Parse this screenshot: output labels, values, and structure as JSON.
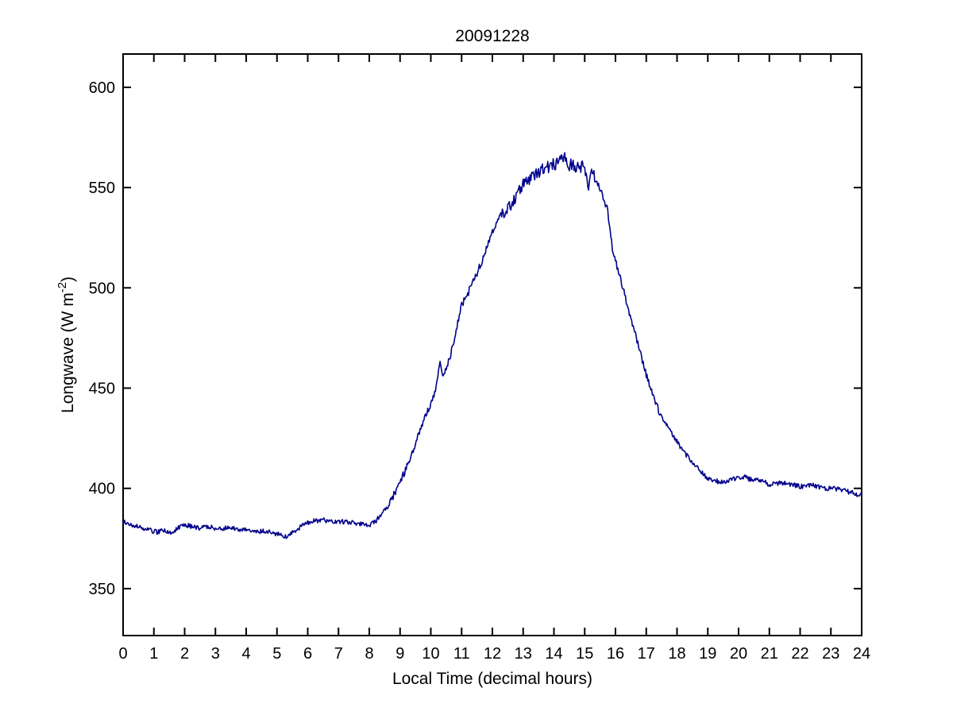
{
  "figure": {
    "background": "#ffffff",
    "axis_color": "#000000",
    "text_color": "#000000"
  },
  "chart_data": {
    "type": "line",
    "title": "20091228",
    "xlabel": "Local Time (decimal hours)",
    "ylabel": "Longwave (W m-2)",
    "ylabel_parts": {
      "prefix": "Longwave (W m",
      "sup": "-2",
      "suffix": ")"
    },
    "xlim": [
      0,
      24
    ],
    "ylim": [
      326.6,
      616.6
    ],
    "xticks": [
      0,
      1,
      2,
      3,
      4,
      5,
      6,
      7,
      8,
      9,
      10,
      11,
      12,
      13,
      14,
      15,
      16,
      17,
      18,
      19,
      20,
      21,
      22,
      23,
      24
    ],
    "yticks": [
      350,
      400,
      450,
      500,
      550,
      600
    ],
    "grid": false,
    "legend": "none",
    "line_color": "#00008B",
    "series": [
      {
        "name": "longwave",
        "t": [
          0,
          0.15,
          0.3,
          0.5,
          0.7,
          0.9,
          1.1,
          1.3,
          1.5,
          1.7,
          1.9,
          2.1,
          2.3,
          2.5,
          2.7,
          2.9,
          3.1,
          3.3,
          3.5,
          3.7,
          3.9,
          4.1,
          4.3,
          4.5,
          4.7,
          4.9,
          5.1,
          5.3,
          5.5,
          5.75,
          6,
          6.25,
          6.5,
          6.75,
          7,
          7.25,
          7.5,
          7.75,
          8,
          8.2,
          8.4,
          8.6,
          8.8,
          9,
          9.2,
          9.4,
          9.6,
          9.8,
          10,
          10.15,
          10.3,
          10.4,
          10.5,
          10.65,
          10.8,
          11,
          11.2,
          11.4,
          11.6,
          11.8,
          12,
          12.2,
          12.4,
          12.6,
          12.8,
          13,
          13.2,
          13.4,
          13.6,
          13.8,
          14,
          14.2,
          14.35,
          14.5,
          14.65,
          14.8,
          14.95,
          15.05,
          15.12,
          15.18,
          15.3,
          15.45,
          15.6,
          15.75,
          15.9,
          16,
          16.2,
          16.4,
          16.6,
          16.8,
          17,
          17.2,
          17.4,
          17.6,
          17.8,
          18,
          18.2,
          18.4,
          18.6,
          18.8,
          19,
          19.2,
          19.4,
          19.6,
          19.8,
          20,
          20.2,
          20.4,
          20.6,
          20.8,
          21,
          21.2,
          21.4,
          21.6,
          21.8,
          22,
          22.2,
          22.4,
          22.6,
          22.8,
          23,
          23.2,
          23.4,
          23.6,
          23.8,
          24
        ],
        "v": [
          383.5,
          382.5,
          381.5,
          381,
          380,
          379,
          378.2,
          379,
          377.5,
          379.5,
          381,
          381.5,
          380.5,
          380,
          380.8,
          380.5,
          380,
          380.3,
          380,
          379.6,
          379.8,
          379.2,
          378.8,
          378.6,
          378.3,
          377.8,
          376.8,
          376.3,
          378,
          380.5,
          382.8,
          383.8,
          384.2,
          383.8,
          383.5,
          383.2,
          382.8,
          382,
          381.6,
          383.5,
          387,
          391.5,
          397,
          403,
          410,
          418,
          427,
          435.5,
          442.5,
          448,
          464,
          456,
          460,
          467,
          477,
          491,
          497,
          504,
          511,
          519,
          527.5,
          535,
          538,
          541.5,
          546,
          551.5,
          554.5,
          556.5,
          558.5,
          560,
          561.5,
          563.5,
          565,
          561.5,
          560.5,
          561,
          560,
          556,
          549,
          559.5,
          556,
          551.5,
          545,
          538.5,
          519,
          513.5,
          502,
          491,
          479,
          468,
          457,
          447.5,
          439,
          433,
          428.5,
          423.5,
          418.5,
          415,
          411,
          408,
          405,
          404,
          403.2,
          403,
          404.8,
          405,
          405.5,
          404.5,
          404,
          403.5,
          401.8,
          402.3,
          402.8,
          402.3,
          401.8,
          400.8,
          401.5,
          401.8,
          400.8,
          400.2,
          399.8,
          399.9,
          399.2,
          398.2,
          397.2,
          396.5
        ]
      }
    ],
    "noise": {
      "base": 1.2,
      "mid": 1.8,
      "peak": 3.1,
      "mid_ranges": [
        [
          8.6,
          12.3
        ],
        [
          15.35,
          17.5
        ]
      ],
      "peak_range": [
        12.3,
        15.35
      ]
    }
  }
}
